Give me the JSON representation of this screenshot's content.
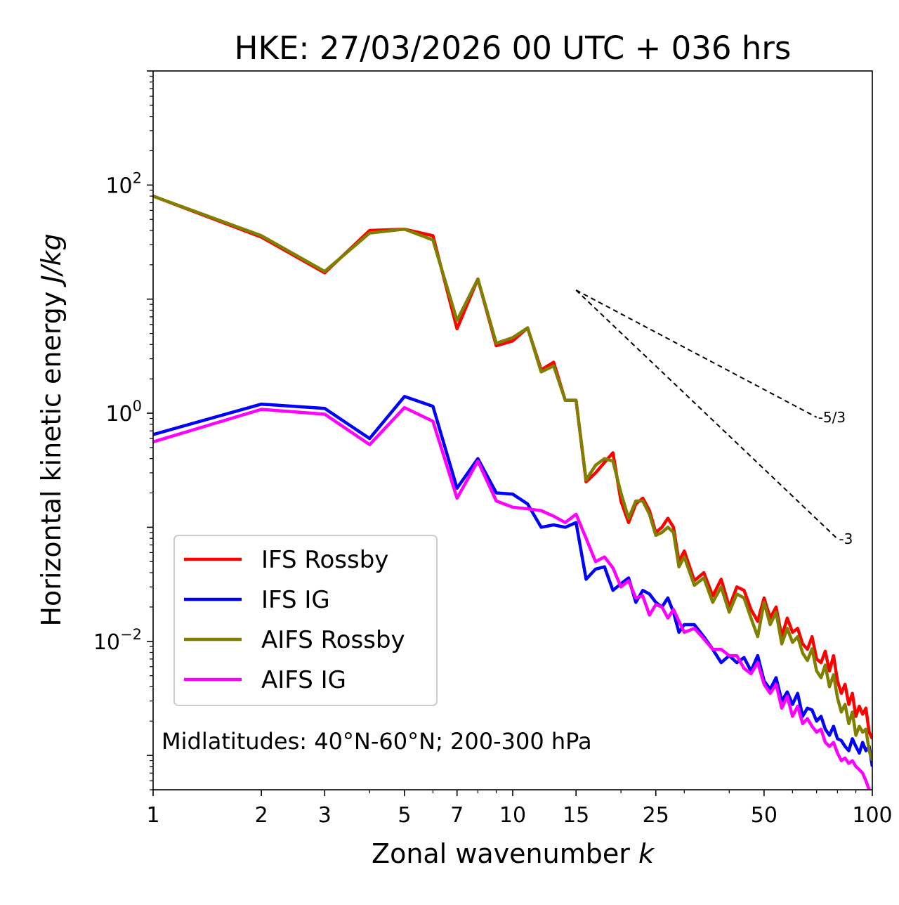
{
  "chart_data": {
    "type": "line",
    "title": "HKE: 27/03/2026 00 UTC + 036 hrs",
    "xlabel": "Zonal wavenumber",
    "xlabel_var": "k",
    "ylabel": "Horizontal kinetic energy",
    "ylabel_unit": "J/kg",
    "xscale": "log",
    "yscale": "log",
    "xlim": [
      1,
      100
    ],
    "ylim": [
      0.0005,
      1000
    ],
    "xticks": [
      {
        "value": 1,
        "label": "1"
      },
      {
        "value": 2,
        "label": "2"
      },
      {
        "value": 3,
        "label": "3"
      },
      {
        "value": 5,
        "label": "5"
      },
      {
        "value": 7,
        "label": "7"
      },
      {
        "value": 10,
        "label": "10"
      },
      {
        "value": 15,
        "label": "15"
      },
      {
        "value": 25,
        "label": "25"
      },
      {
        "value": 50,
        "label": "50"
      },
      {
        "value": 100,
        "label": "100"
      }
    ],
    "yticks": [
      {
        "value": 100,
        "base": "10",
        "exp": "2"
      },
      {
        "value": 1,
        "base": "10",
        "exp": "0"
      },
      {
        "value": 0.01,
        "base": "10",
        "exp": "−2"
      }
    ],
    "legend_position": "lower-left",
    "annotation": "Midlatitudes: 40°N-60°N; 200-300 hPa",
    "reference_slopes": [
      {
        "label": "-5/3",
        "slope": -1.6667,
        "x_start": 15,
        "x_end": 70,
        "y_start": 12
      },
      {
        "label": "-3",
        "slope": -3,
        "x_start": 15,
        "x_end": 80,
        "y_start": 12
      }
    ],
    "series": [
      {
        "name": "IFS Rossby",
        "color": "#ff0000",
        "x": [
          1,
          2,
          3,
          4,
          5,
          6,
          7,
          8,
          9,
          10,
          11,
          12,
          13,
          14,
          15,
          16,
          17,
          18,
          19,
          20,
          21,
          22,
          23,
          24,
          25,
          26,
          27,
          28,
          29,
          30,
          32,
          34,
          36,
          38,
          40,
          42,
          44,
          46,
          48,
          50,
          52,
          54,
          56,
          58,
          60,
          62,
          64,
          66,
          68,
          70,
          72,
          74,
          76,
          78,
          80,
          82,
          84,
          86,
          88,
          90,
          92,
          94,
          96,
          98,
          100
        ],
        "y": [
          80,
          35,
          17,
          40,
          41,
          36,
          5.5,
          15,
          3.9,
          4.3,
          5.6,
          2.4,
          2.8,
          1.3,
          1.3,
          0.25,
          0.3,
          0.37,
          0.45,
          0.17,
          0.11,
          0.16,
          0.18,
          0.14,
          0.09,
          0.1,
          0.12,
          0.1,
          0.05,
          0.062,
          0.034,
          0.04,
          0.025,
          0.035,
          0.02,
          0.03,
          0.028,
          0.019,
          0.015,
          0.024,
          0.016,
          0.02,
          0.011,
          0.016,
          0.012,
          0.013,
          0.0095,
          0.0085,
          0.011,
          0.007,
          0.0065,
          0.0082,
          0.0055,
          0.0075,
          0.0045,
          0.0035,
          0.0042,
          0.0028,
          0.0035,
          0.0022,
          0.0027,
          0.0023,
          0.0026,
          0.0016,
          0.0014
        ]
      },
      {
        "name": "IFS IG",
        "color": "#0000ff",
        "x": [
          1,
          2,
          3,
          4,
          5,
          6,
          7,
          8,
          9,
          10,
          11,
          12,
          13,
          14,
          15,
          16,
          17,
          18,
          19,
          20,
          21,
          22,
          23,
          24,
          25,
          26,
          27,
          28,
          29,
          30,
          32,
          34,
          36,
          38,
          40,
          42,
          44,
          46,
          48,
          50,
          52,
          54,
          56,
          58,
          60,
          62,
          64,
          66,
          68,
          70,
          72,
          74,
          76,
          78,
          80,
          82,
          84,
          86,
          88,
          90,
          92,
          94,
          96,
          98,
          100
        ],
        "y": [
          0.65,
          1.2,
          1.1,
          0.6,
          1.4,
          1.15,
          0.22,
          0.4,
          0.2,
          0.195,
          0.16,
          0.1,
          0.105,
          0.1,
          0.11,
          0.035,
          0.043,
          0.045,
          0.028,
          0.032,
          0.036,
          0.022,
          0.028,
          0.026,
          0.022,
          0.02,
          0.024,
          0.018,
          0.012,
          0.014,
          0.014,
          0.011,
          0.0085,
          0.0065,
          0.0075,
          0.0065,
          0.0072,
          0.0055,
          0.0075,
          0.0045,
          0.0038,
          0.0048,
          0.003,
          0.0036,
          0.0028,
          0.0035,
          0.0022,
          0.0026,
          0.0025,
          0.002,
          0.0022,
          0.0017,
          0.0015,
          0.0018,
          0.0014,
          0.00135,
          0.0012,
          0.0011,
          0.0014,
          0.0012,
          0.00105,
          0.0013,
          0.0011,
          0.0012,
          0.0008
        ]
      },
      {
        "name": "AIFS Rossby",
        "color": "#808000",
        "x": [
          1,
          2,
          3,
          4,
          5,
          6,
          7,
          8,
          9,
          10,
          11,
          12,
          13,
          14,
          15,
          16,
          17,
          18,
          19,
          20,
          21,
          22,
          23,
          24,
          25,
          26,
          27,
          28,
          29,
          30,
          32,
          34,
          36,
          38,
          40,
          42,
          44,
          46,
          48,
          50,
          52,
          54,
          56,
          58,
          60,
          62,
          64,
          66,
          68,
          70,
          72,
          74,
          76,
          78,
          80,
          82,
          84,
          86,
          88,
          90,
          92,
          94,
          96,
          98,
          100
        ],
        "y": [
          80,
          36,
          17.5,
          38,
          41,
          33,
          6.5,
          15,
          4.1,
          4.6,
          5.6,
          2.3,
          2.6,
          1.3,
          1.3,
          0.26,
          0.35,
          0.4,
          0.38,
          0.2,
          0.12,
          0.17,
          0.17,
          0.13,
          0.085,
          0.09,
          0.1,
          0.09,
          0.045,
          0.055,
          0.031,
          0.036,
          0.022,
          0.03,
          0.018,
          0.026,
          0.024,
          0.016,
          0.011,
          0.022,
          0.014,
          0.018,
          0.0095,
          0.013,
          0.0098,
          0.011,
          0.0079,
          0.0068,
          0.0086,
          0.0055,
          0.0048,
          0.0062,
          0.004,
          0.0051,
          0.0032,
          0.0024,
          0.0028,
          0.0019,
          0.0024,
          0.0015,
          0.0018,
          0.0016,
          0.0017,
          0.0011,
          0.0009
        ]
      },
      {
        "name": "AIFS IG",
        "color": "#ff00ff",
        "x": [
          1,
          2,
          3,
          4,
          5,
          6,
          7,
          8,
          9,
          10,
          11,
          12,
          13,
          14,
          15,
          16,
          17,
          18,
          19,
          20,
          21,
          22,
          23,
          24,
          25,
          26,
          27,
          28,
          29,
          30,
          32,
          34,
          36,
          38,
          40,
          42,
          44,
          46,
          48,
          50,
          52,
          54,
          56,
          58,
          60,
          62,
          64,
          66,
          68,
          70,
          72,
          74,
          76,
          78,
          80,
          82,
          84,
          86,
          88,
          90,
          92,
          94,
          96,
          98,
          100
        ],
        "y": [
          0.56,
          1.08,
          0.98,
          0.53,
          1.12,
          0.85,
          0.18,
          0.38,
          0.17,
          0.15,
          0.145,
          0.14,
          0.125,
          0.11,
          0.13,
          0.08,
          0.05,
          0.055,
          0.044,
          0.03,
          0.034,
          0.024,
          0.025,
          0.017,
          0.021,
          0.02,
          0.016,
          0.019,
          0.015,
          0.012,
          0.013,
          0.0105,
          0.0085,
          0.0085,
          0.0075,
          0.0075,
          0.0058,
          0.0052,
          0.0065,
          0.0042,
          0.0035,
          0.0042,
          0.0026,
          0.0033,
          0.0022,
          0.0027,
          0.0019,
          0.0021,
          0.0018,
          0.0016,
          0.0017,
          0.0013,
          0.0012,
          0.0013,
          0.00105,
          0.0009,
          0.00095,
          0.00085,
          0.0009,
          0.0008,
          0.00075,
          0.0007,
          0.0006,
          0.0005,
          0.00045
        ]
      }
    ]
  }
}
